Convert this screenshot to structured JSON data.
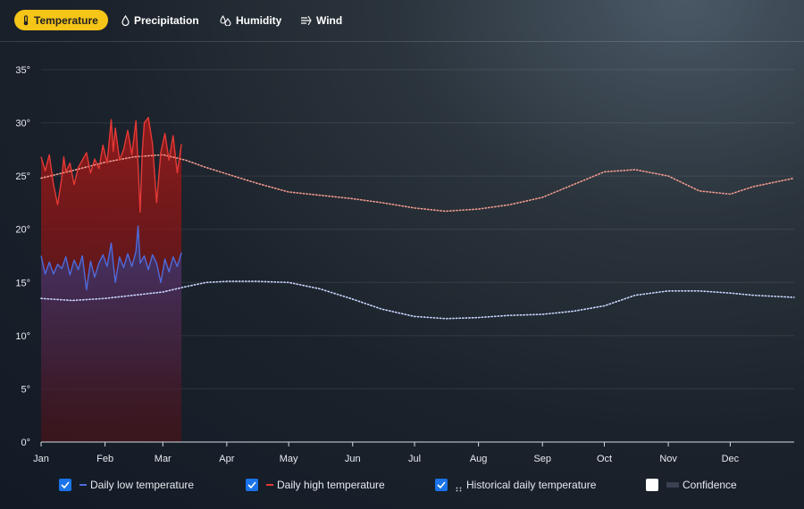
{
  "tabs": [
    {
      "label": "Temperature",
      "icon": "thermometer-icon",
      "active": true
    },
    {
      "label": "Precipitation",
      "icon": "droplet-icon",
      "active": false
    },
    {
      "label": "Humidity",
      "icon": "humidity-icon",
      "active": false
    },
    {
      "label": "Wind",
      "icon": "wind-icon",
      "active": false
    }
  ],
  "legend": [
    {
      "label": "Daily low temperature",
      "checked": true,
      "color": "#4f6bdc"
    },
    {
      "label": "Daily high temperature",
      "checked": true,
      "color": "#e53935"
    },
    {
      "label": "Historical daily temperature",
      "checked": true,
      "color": "#cfd8e3"
    },
    {
      "label": "Confidence",
      "checked": false,
      "color": "#3a4150"
    }
  ],
  "colors": {
    "accent": "#f5c518",
    "checkbox": "#1a73e8",
    "high": "#e53935",
    "low": "#4f6bdc"
  },
  "chart_data": {
    "type": "line",
    "x_unit": "day-of-year",
    "ylim": [
      0,
      35
    ],
    "y_ticks": [
      0,
      5,
      10,
      15,
      20,
      25,
      30,
      35
    ],
    "y_tick_labels": [
      "0°",
      "5°",
      "10°",
      "15°",
      "20°",
      "25°",
      "30°",
      "35°"
    ],
    "x_tick_days": [
      0,
      31,
      59,
      90,
      120,
      151,
      181,
      212,
      243,
      273,
      304,
      334
    ],
    "x_tick_labels": [
      "Jan",
      "Feb",
      "Mar",
      "Apr",
      "May",
      "Jun",
      "Jul",
      "Aug",
      "Sep",
      "Oct",
      "Nov",
      "Dec"
    ],
    "x_max": 365,
    "grid": true,
    "legend_position": "bottom",
    "series": [
      {
        "name": "Daily high temperature",
        "style": "solid",
        "fill": "red-gradient",
        "x": [
          0,
          2,
          4,
          6,
          8,
          10,
          11,
          12,
          14,
          16,
          18,
          20,
          22,
          24,
          26,
          28,
          30,
          32,
          34,
          35,
          36,
          37,
          38,
          40,
          42,
          44,
          46,
          47,
          48,
          49,
          50,
          52,
          54,
          56,
          58,
          60,
          62,
          64,
          66,
          68
        ],
        "y": [
          26.8,
          25.5,
          27,
          24.2,
          22.3,
          24.8,
          26.8,
          25.4,
          26.2,
          24.2,
          25.8,
          26.5,
          27.2,
          25.3,
          26.6,
          25.7,
          27.9,
          26.2,
          30.3,
          27.3,
          29.5,
          28.0,
          26.5,
          27.5,
          29.3,
          27.0,
          30.2,
          26.0,
          21.6,
          27.2,
          30.0,
          30.5,
          28.0,
          22.5,
          27.2,
          29.0,
          26.5,
          28.8,
          25.3,
          28.0
        ]
      },
      {
        "name": "Daily low temperature",
        "style": "solid",
        "fill": "blue-gradient",
        "x": [
          0,
          2,
          4,
          6,
          8,
          10,
          12,
          14,
          16,
          18,
          20,
          22,
          24,
          26,
          28,
          30,
          32,
          34,
          36,
          38,
          40,
          42,
          44,
          46,
          47,
          48,
          50,
          52,
          54,
          56,
          58,
          60,
          62,
          64,
          66,
          68
        ],
        "y": [
          17.5,
          15.8,
          16.9,
          15.8,
          16.7,
          16.3,
          17.4,
          15.7,
          17.1,
          16.2,
          17.5,
          14.3,
          17.0,
          15.5,
          16.8,
          17.6,
          16.5,
          18.7,
          15.0,
          17.4,
          16.4,
          17.7,
          16.5,
          17.9,
          20.3,
          16.8,
          17.5,
          16.2,
          17.6,
          16.8,
          15.0,
          17.2,
          16.0,
          17.4,
          16.5,
          17.8
        ]
      },
      {
        "name": "Historical daily temperature",
        "style": "dotted",
        "band": "high",
        "x": [
          0,
          15,
          31,
          45,
          59,
          70,
          80,
          90,
          105,
          120,
          135,
          150,
          165,
          181,
          196,
          212,
          227,
          243,
          258,
          273,
          288,
          304,
          319,
          334,
          345,
          355,
          365
        ],
        "y": [
          24.8,
          25.5,
          26.3,
          26.8,
          27.0,
          26.5,
          25.8,
          25.2,
          24.3,
          23.5,
          23.2,
          22.9,
          22.5,
          22.0,
          21.7,
          21.9,
          22.3,
          23.0,
          24.2,
          25.4,
          25.6,
          25.0,
          23.6,
          23.3,
          24.0,
          24.4,
          24.8
        ]
      },
      {
        "name": "Historical daily temperature",
        "style": "dotted",
        "band": "low",
        "x": [
          0,
          15,
          31,
          45,
          59,
          70,
          80,
          90,
          105,
          120,
          135,
          150,
          165,
          181,
          196,
          212,
          227,
          243,
          258,
          273,
          288,
          304,
          319,
          334,
          345,
          355,
          365
        ],
        "y": [
          13.5,
          13.3,
          13.5,
          13.8,
          14.1,
          14.6,
          15.0,
          15.1,
          15.1,
          15.0,
          14.4,
          13.5,
          12.5,
          11.8,
          11.6,
          11.7,
          11.9,
          12.0,
          12.3,
          12.8,
          13.8,
          14.2,
          14.2,
          14.0,
          13.8,
          13.7,
          13.6
        ]
      }
    ]
  }
}
